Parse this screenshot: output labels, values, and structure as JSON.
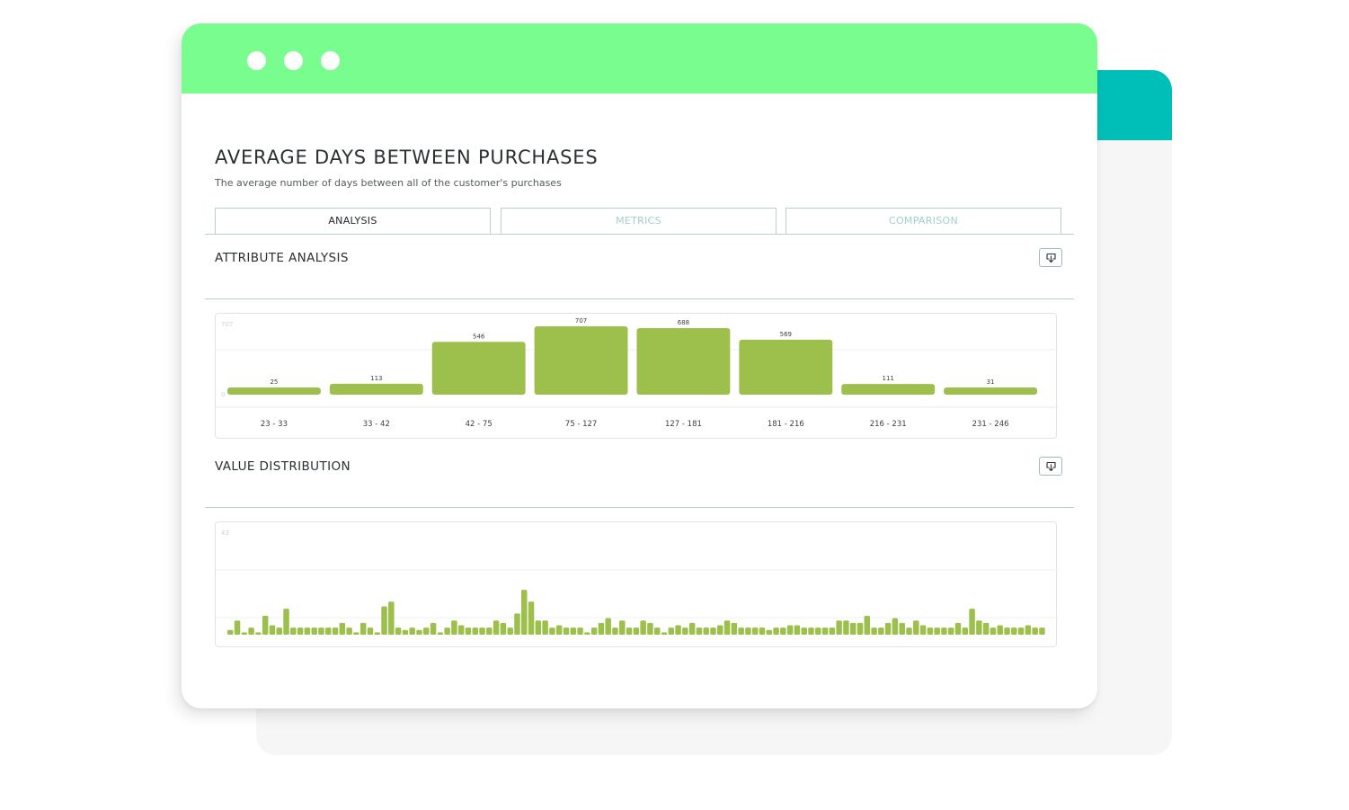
{
  "page": {
    "title": "AVERAGE DAYS BETWEEN PURCHASES",
    "subtitle": "The average number of days between all of the customer's purchases"
  },
  "tabs": [
    {
      "label": "ANALYSIS",
      "active": true
    },
    {
      "label": "METRICS",
      "active": false
    },
    {
      "label": "COMPARISON",
      "active": false
    }
  ],
  "sections": {
    "attribute_analysis": {
      "title": "ATTRIBUTE ANALYSIS",
      "download_icon": "download-icon"
    },
    "value_distribution": {
      "title": "VALUE DISTRIBUTION",
      "download_icon": "download-icon"
    }
  },
  "colors": {
    "titlebar": "#7afd8f",
    "back_titlebar": "#00bfb8",
    "bar": "#9dbf4c",
    "tab_inactive_text": "#9fd0cf"
  },
  "chart_data": [
    {
      "type": "bar",
      "categories": [
        "23 - 33",
        "33 - 42",
        "42 - 75",
        "75 - 127",
        "127 - 181",
        "181 - 216",
        "216 - 231",
        "231 - 246"
      ],
      "values": [
        25,
        113,
        546,
        707,
        688,
        569,
        111,
        31
      ],
      "ylim": [
        0,
        707
      ],
      "ytick_labels": [
        "707",
        "0"
      ],
      "grid": true
    },
    {
      "type": "bar",
      "values": [
        2,
        6,
        1,
        3,
        1,
        8,
        4,
        3,
        11,
        3,
        3,
        3,
        3,
        3,
        3,
        3,
        5,
        3,
        1,
        5,
        3,
        1,
        12,
        14,
        3,
        2,
        3,
        2,
        3,
        5,
        1,
        3,
        6,
        4,
        3,
        3,
        3,
        3,
        6,
        5,
        3,
        9,
        19,
        14,
        6,
        6,
        3,
        4,
        3,
        3,
        3,
        1,
        3,
        5,
        7,
        3,
        6,
        3,
        3,
        6,
        5,
        3,
        1,
        3,
        4,
        3,
        5,
        3,
        3,
        3,
        4,
        6,
        5,
        3,
        3,
        3,
        3,
        2,
        3,
        3,
        4,
        4,
        3,
        3,
        3,
        3,
        3,
        6,
        6,
        5,
        5,
        8,
        3,
        3,
        5,
        7,
        5,
        3,
        6,
        4,
        3,
        3,
        3,
        3,
        5,
        3,
        11,
        6,
        5,
        3,
        4,
        3,
        3,
        3,
        4,
        3,
        3
      ],
      "ylim": [
        0,
        43
      ],
      "ytick_labels": [
        "43"
      ],
      "grid": true
    }
  ]
}
